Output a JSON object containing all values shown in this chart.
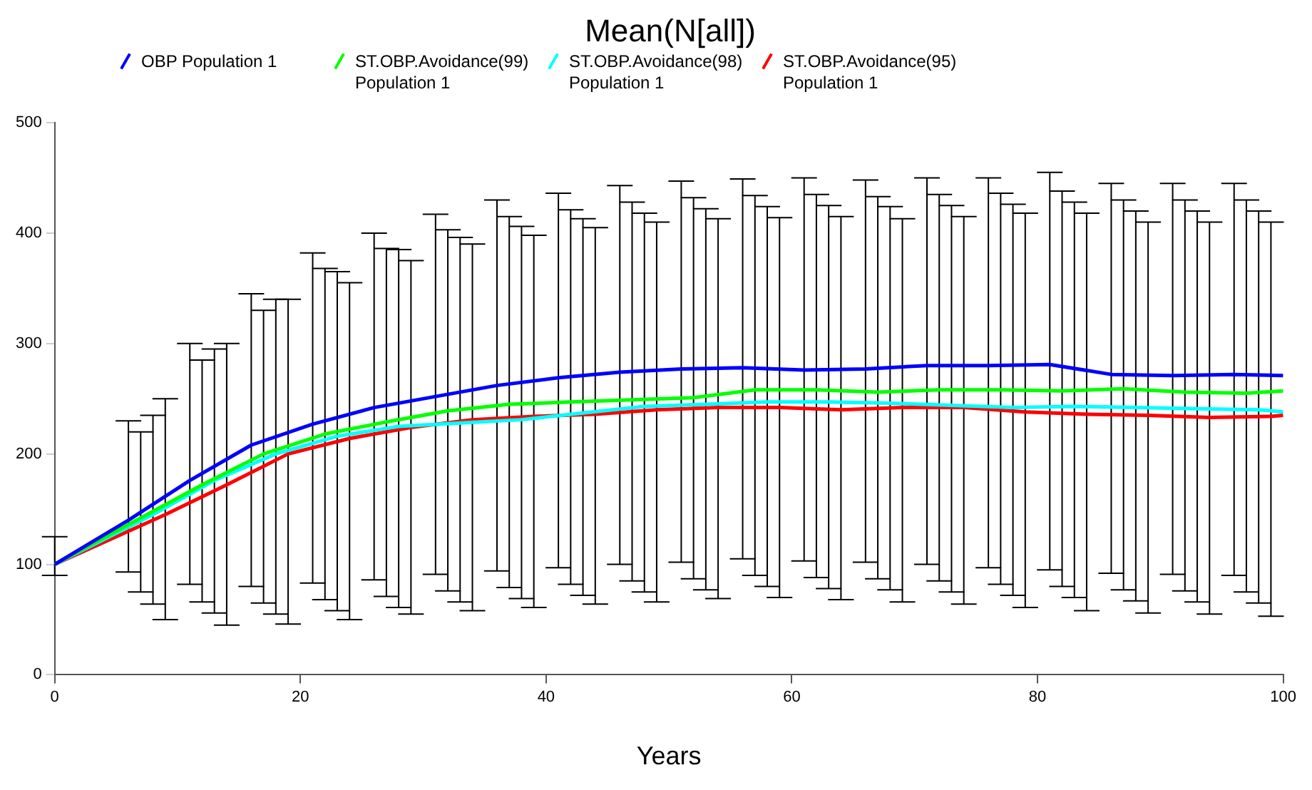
{
  "chart_data": {
    "type": "line",
    "title": "Mean(N[all])",
    "xlabel": "Years",
    "xlim": [
      0,
      100
    ],
    "xticks": [
      0,
      20,
      40,
      60,
      80,
      100
    ],
    "ylim": [
      0,
      500
    ],
    "yticks": [
      0,
      100,
      200,
      300,
      400,
      500
    ],
    "legend": "top",
    "marker": "none",
    "line_style": "solid",
    "series": [
      {
        "name": "OBP Population  1",
        "color": "#0000ff",
        "x": [
          0,
          6,
          11,
          16,
          21,
          26,
          31,
          36,
          41,
          46,
          51,
          56,
          61,
          66,
          71,
          76,
          81,
          86,
          91,
          96,
          100
        ],
        "values": [
          100,
          140,
          176,
          208,
          227,
          242,
          252,
          262,
          269,
          274,
          277,
          278,
          276,
          277,
          280,
          280,
          281,
          272,
          271,
          272,
          271
        ],
        "errors": [
          [
            90,
            125
          ],
          [
            93,
            230
          ],
          [
            82,
            300
          ],
          [
            80,
            345
          ],
          [
            83,
            382
          ],
          [
            86,
            400
          ],
          [
            91,
            417
          ],
          [
            94,
            430
          ],
          [
            97,
            436
          ],
          [
            100,
            443
          ],
          [
            102,
            447
          ],
          [
            105,
            449
          ],
          [
            103,
            450
          ],
          [
            102,
            448
          ],
          [
            100,
            450
          ],
          [
            97,
            450
          ],
          [
            95,
            455
          ],
          [
            92,
            445
          ],
          [
            91,
            445
          ],
          [
            90,
            445
          ],
          null
        ]
      },
      {
        "name": "ST.OBP.Avoidance(99) Population  1",
        "color": "#00ff00",
        "x": [
          0,
          7,
          12,
          17,
          22,
          27,
          32,
          37,
          42,
          47,
          52,
          57,
          62,
          67,
          72,
          77,
          82,
          87,
          92,
          97,
          100
        ],
        "values": [
          100,
          142,
          172,
          200,
          218,
          229,
          239,
          245,
          247,
          249,
          251,
          258,
          258,
          256,
          258,
          258,
          257,
          259,
          256,
          255,
          257
        ],
        "errors": [
          null,
          [
            75,
            220
          ],
          [
            66,
            285
          ],
          [
            65,
            330
          ],
          [
            68,
            368
          ],
          [
            71,
            386
          ],
          [
            76,
            403
          ],
          [
            79,
            415
          ],
          [
            82,
            421
          ],
          [
            85,
            428
          ],
          [
            87,
            432
          ],
          [
            90,
            434
          ],
          [
            88,
            435
          ],
          [
            87,
            433
          ],
          [
            85,
            435
          ],
          [
            82,
            436
          ],
          [
            80,
            438
          ],
          [
            77,
            430
          ],
          [
            76,
            430
          ],
          [
            75,
            430
          ],
          null
        ]
      },
      {
        "name": "ST.OBP.Avoidance(98) Population  1",
        "color": "#00ffff",
        "x": [
          0,
          8,
          13,
          18,
          23,
          28,
          33,
          38,
          43,
          48,
          53,
          58,
          63,
          68,
          73,
          78,
          83,
          88,
          93,
          98,
          100
        ],
        "values": [
          100,
          145,
          176,
          200,
          216,
          225,
          228,
          231,
          237,
          243,
          245,
          247,
          247,
          246,
          244,
          242,
          243,
          242,
          241,
          240,
          238
        ],
        "errors": [
          null,
          [
            64,
            235
          ],
          [
            56,
            295
          ],
          [
            55,
            340
          ],
          [
            58,
            365
          ],
          [
            61,
            385
          ],
          [
            66,
            396
          ],
          [
            69,
            406
          ],
          [
            72,
            413
          ],
          [
            75,
            418
          ],
          [
            77,
            422
          ],
          [
            80,
            424
          ],
          [
            78,
            425
          ],
          [
            77,
            424
          ],
          [
            75,
            425
          ],
          [
            72,
            426
          ],
          [
            70,
            428
          ],
          [
            67,
            420
          ],
          [
            66,
            420
          ],
          [
            65,
            420
          ],
          null
        ]
      },
      {
        "name": "ST.OBP.Avoidance(95) Population  1",
        "color": "#ff0000",
        "x": [
          0,
          9,
          14,
          19,
          24,
          29,
          34,
          39,
          44,
          49,
          54,
          59,
          64,
          69,
          74,
          79,
          84,
          89,
          94,
          99,
          100
        ],
        "values": [
          100,
          145,
          172,
          200,
          214,
          224,
          231,
          234,
          236,
          240,
          242,
          242,
          240,
          242,
          242,
          238,
          236,
          235,
          233,
          234,
          235
        ],
        "errors": [
          null,
          [
            50,
            250
          ],
          [
            45,
            300
          ],
          [
            46,
            340
          ],
          [
            50,
            355
          ],
          [
            55,
            375
          ],
          [
            58,
            390
          ],
          [
            61,
            398
          ],
          [
            64,
            405
          ],
          [
            66,
            410
          ],
          [
            69,
            413
          ],
          [
            70,
            414
          ],
          [
            68,
            415
          ],
          [
            66,
            413
          ],
          [
            64,
            415
          ],
          [
            61,
            418
          ],
          [
            58,
            418
          ],
          [
            56,
            410
          ],
          [
            55,
            410
          ],
          [
            53,
            410
          ],
          null
        ]
      }
    ]
  }
}
